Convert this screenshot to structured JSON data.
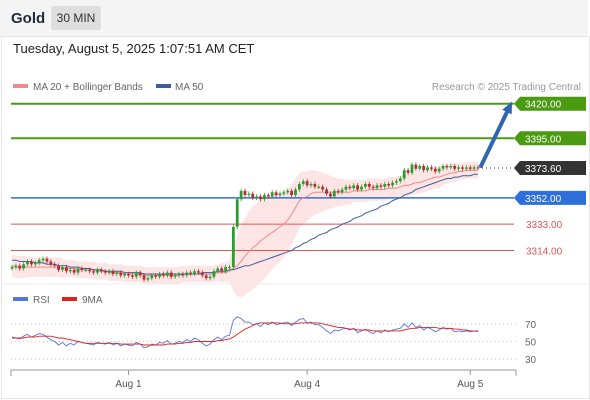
{
  "header": {
    "instrument": "Gold",
    "timeframe": "30 MIN"
  },
  "datetime": "Tuesday, August 5, 2025 1:07:51 AM CET",
  "legend": {
    "ma20_label": "MA 20 + Bollinger Bands",
    "ma50_label": "MA 50",
    "source": "Research © 2025 Trading Central"
  },
  "colors": {
    "green_level": "#4a9a12",
    "blue_level": "#2e6fdb",
    "red_level": "#e05555",
    "current_price": "#333333",
    "candle_up": "#2e9b2e",
    "candle_down": "#b03030",
    "bollinger_fill": "#fde0e0",
    "ma20": "#f08a8a",
    "ma50": "#3b5f9e",
    "rsi": "#5577dd",
    "rsi_ma": "#dd2222",
    "arrow": "#2e67b0"
  },
  "chart_data": [
    {
      "type": "candlestick",
      "ylim": [
        3284,
        3440
      ],
      "x_ticks": [
        "Aug 1",
        "Aug 4",
        "Aug 5"
      ],
      "levels": [
        {
          "value": 3420.0,
          "label": "3420.00",
          "kind": "resistance"
        },
        {
          "value": 3395.0,
          "label": "3395.00",
          "kind": "resistance"
        },
        {
          "value": 3373.6,
          "label": "3373.60",
          "kind": "current"
        },
        {
          "value": 3352.0,
          "label": "3352.00",
          "kind": "pivot"
        },
        {
          "value": 3333.0,
          "label": "3333.00",
          "kind": "support"
        },
        {
          "value": 3314.0,
          "label": "3314.00",
          "kind": "support"
        }
      ],
      "close": [
        3302,
        3303,
        3301,
        3304,
        3306,
        3304,
        3305,
        3307,
        3308,
        3306,
        3304,
        3303,
        3300,
        3302,
        3299,
        3300,
        3298,
        3301,
        3300,
        3300,
        3299,
        3298,
        3300,
        3299,
        3298,
        3299,
        3297,
        3298,
        3296,
        3297,
        3296,
        3295,
        3298,
        3296,
        3293,
        3294,
        3296,
        3295,
        3297,
        3296,
        3298,
        3295,
        3296,
        3297,
        3296,
        3298,
        3297,
        3299,
        3298,
        3296,
        3294,
        3295,
        3299,
        3301,
        3299,
        3302,
        3302,
        3331,
        3351,
        3357,
        3354,
        3355,
        3352,
        3353,
        3351,
        3354,
        3353,
        3356,
        3354,
        3355,
        3356,
        3357,
        3354,
        3358,
        3362,
        3364,
        3361,
        3362,
        3360,
        3360,
        3358,
        3355,
        3353,
        3357,
        3356,
        3358,
        3360,
        3359,
        3361,
        3358,
        3360,
        3362,
        3360,
        3359,
        3361,
        3360,
        3362,
        3361,
        3363,
        3364,
        3366,
        3372,
        3370,
        3376,
        3373,
        3375,
        3372,
        3374,
        3373,
        3371,
        3373,
        3375,
        3374,
        3375,
        3373,
        3374,
        3373,
        3374,
        3373,
        3374,
        3373.6
      ],
      "ma20": [
        3303,
        3302,
        3302,
        3302,
        3302,
        3302,
        3302,
        3302,
        3302,
        3302,
        3302,
        3302,
        3302,
        3301,
        3301,
        3301,
        3301,
        3300,
        3300,
        3300,
        3300,
        3300,
        3299,
        3299,
        3299,
        3298,
        3298,
        3298,
        3298,
        3297,
        3297,
        3297,
        3297,
        3297,
        3296,
        3296,
        3296,
        3296,
        3296,
        3296,
        3296,
        3296,
        3296,
        3296,
        3297,
        3297,
        3297,
        3297,
        3297,
        3297,
        3297,
        3297,
        3297,
        3298,
        3298,
        3298,
        3299,
        3301,
        3303,
        3306,
        3310,
        3313,
        3316,
        3318,
        3321,
        3323,
        3325,
        3327,
        3329,
        3331,
        3333,
        3336,
        3340,
        3345,
        3350,
        3352,
        3353,
        3355,
        3356,
        3356,
        3356,
        3356,
        3356,
        3356,
        3356,
        3356,
        3356,
        3356,
        3357,
        3357,
        3357,
        3357,
        3358,
        3358,
        3358,
        3358,
        3358,
        3359,
        3359,
        3359,
        3360,
        3361,
        3361,
        3362,
        3363,
        3363,
        3364,
        3365,
        3366,
        3367,
        3367,
        3368,
        3369,
        3370,
        3370,
        3371,
        3371,
        3372,
        3372,
        3372,
        3372
      ],
      "ma50": [
        3307,
        3307,
        3306,
        3306,
        3306,
        3306,
        3305,
        3305,
        3305,
        3304,
        3304,
        3304,
        3303,
        3303,
        3303,
        3302,
        3302,
        3302,
        3301,
        3301,
        3301,
        3300,
        3300,
        3300,
        3299,
        3299,
        3299,
        3299,
        3299,
        3298,
        3298,
        3298,
        3298,
        3298,
        3297,
        3297,
        3297,
        3297,
        3297,
        3297,
        3297,
        3297,
        3297,
        3297,
        3297,
        3297,
        3297,
        3297,
        3297,
        3298,
        3298,
        3298,
        3298,
        3299,
        3299,
        3299,
        3300,
        3300,
        3301,
        3302,
        3303,
        3303,
        3304,
        3305,
        3306,
        3307,
        3308,
        3309,
        3310,
        3311,
        3312,
        3313,
        3314,
        3316,
        3317,
        3319,
        3320,
        3322,
        3323,
        3325,
        3326,
        3327,
        3329,
        3330,
        3331,
        3333,
        3334,
        3335,
        3337,
        3338,
        3339,
        3341,
        3342,
        3343,
        3344,
        3346,
        3347,
        3348,
        3350,
        3351,
        3352,
        3354,
        3355,
        3356,
        3358,
        3359,
        3360,
        3361,
        3362,
        3363,
        3364,
        3365,
        3366,
        3366,
        3367,
        3367,
        3368,
        3368,
        3368,
        3369,
        3369
      ],
      "bb_width": [
        8,
        8,
        8,
        8,
        7,
        7,
        7,
        7,
        7,
        7,
        7,
        7,
        7,
        7,
        6,
        6,
        6,
        6,
        6,
        6,
        6,
        6,
        6,
        6,
        6,
        6,
        6,
        6,
        6,
        6,
        6,
        6,
        6,
        6,
        6,
        6,
        6,
        6,
        6,
        6,
        6,
        6,
        6,
        6,
        6,
        6,
        6,
        6,
        6,
        6,
        6,
        6,
        6,
        6,
        7,
        7,
        8,
        16,
        22,
        26,
        28,
        29,
        30,
        30,
        30,
        29,
        28,
        27,
        26,
        25,
        24,
        23,
        22,
        21,
        20,
        19,
        18,
        17,
        16,
        15,
        14,
        13,
        12,
        11,
        10,
        10,
        9,
        9,
        8,
        8,
        8,
        8,
        8,
        8,
        8,
        8,
        8,
        8,
        8,
        8,
        8,
        8,
        8,
        8,
        8,
        8,
        8,
        8,
        8,
        8,
        8,
        7,
        7,
        7,
        7,
        6,
        6,
        6,
        6,
        6,
        6
      ]
    },
    {
      "type": "line",
      "ylim": [
        20,
        80
      ],
      "y_ticks": [
        "70",
        "50",
        "30"
      ],
      "legend": [
        "RSI",
        "9MA"
      ],
      "series": [
        {
          "name": "RSI",
          "values": [
            55,
            54,
            53,
            56,
            58,
            55,
            57,
            59,
            58,
            55,
            52,
            50,
            46,
            49,
            45,
            48,
            46,
            50,
            49,
            48,
            47,
            46,
            49,
            48,
            47,
            49,
            46,
            48,
            45,
            47,
            46,
            45,
            49,
            47,
            43,
            44,
            47,
            46,
            49,
            48,
            51,
            47,
            48,
            50,
            49,
            52,
            50,
            54,
            52,
            48,
            45,
            47,
            52,
            55,
            52,
            56,
            57,
            74,
            78,
            76,
            72,
            72,
            69,
            70,
            67,
            71,
            69,
            72,
            69,
            70,
            71,
            72,
            68,
            72,
            75,
            76,
            71,
            72,
            69,
            69,
            66,
            62,
            59,
            63,
            62,
            64,
            65,
            63,
            65,
            60,
            62,
            64,
            61,
            59,
            62,
            60,
            63,
            61,
            63,
            64,
            65,
            70,
            66,
            71,
            66,
            68,
            63,
            66,
            64,
            61,
            63,
            66,
            64,
            65,
            61,
            62,
            61,
            62,
            61,
            62,
            61
          ]
        },
        {
          "name": "9MA",
          "values": [
            54,
            54,
            54,
            54,
            55,
            55,
            55,
            56,
            56,
            56,
            56,
            55,
            54,
            54,
            53,
            52,
            51,
            50,
            49,
            48,
            48,
            48,
            48,
            48,
            48,
            48,
            48,
            48,
            47,
            47,
            47,
            47,
            47,
            47,
            46,
            46,
            46,
            46,
            46,
            46,
            47,
            47,
            47,
            48,
            48,
            49,
            49,
            50,
            50,
            50,
            50,
            50,
            50,
            51,
            51,
            52,
            53,
            55,
            58,
            61,
            64,
            66,
            68,
            70,
            71,
            71,
            71,
            71,
            71,
            71,
            70,
            70,
            70,
            70,
            71,
            71,
            71,
            71,
            71,
            71,
            70,
            69,
            68,
            67,
            66,
            66,
            65,
            64,
            64,
            63,
            63,
            63,
            63,
            62,
            62,
            62,
            62,
            62,
            62,
            62,
            62,
            63,
            64,
            65,
            65,
            66,
            66,
            66,
            66,
            66,
            65,
            65,
            65,
            65,
            64,
            64,
            63,
            63,
            62,
            62,
            62
          ]
        }
      ]
    }
  ]
}
